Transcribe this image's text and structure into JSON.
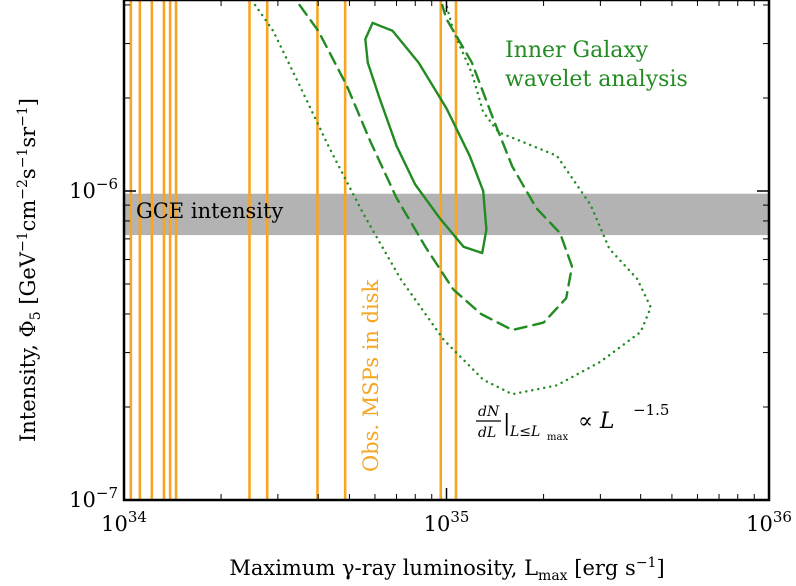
{
  "chart_data": {
    "type": "contour",
    "xscale": "log",
    "yscale": "log",
    "xlim": [
      1e+34,
      1e+36
    ],
    "ylim": [
      1e-07,
      4e-06
    ],
    "xlabel": "Maximum γ-ray luminosity, L",
    "xlabel_sub": "max",
    "xlabel_unit": " [erg s",
    "xlabel_unit_sup": "−1",
    "xlabel_end": "]",
    "ylabel": "Intensity, Φ",
    "ylabel_sub": "5",
    "ylabel_unit": " [GeV",
    "x_ticks": [
      {
        "value": 1e+34,
        "base": "10",
        "exp": "34"
      },
      {
        "value": 1e+35,
        "base": "10",
        "exp": "35"
      },
      {
        "value": 1e+36,
        "base": "10",
        "exp": "36"
      }
    ],
    "y_ticks": [
      {
        "value": 1e-07,
        "base": "10",
        "exp": "−7"
      },
      {
        "value": 1e-06,
        "base": "10",
        "exp": "−6"
      }
    ],
    "gce_band": {
      "label": "GCE intensity",
      "ymin": 7.2e-07,
      "ymax": 9.8e-07,
      "color": "#b3b3b3"
    },
    "msp_lines": {
      "label": "Obs. MSPs in disk",
      "color": "#f6a623",
      "x": [
        1.05e+34,
        1.12e+34,
        1.22e+34,
        1.33e+34,
        1.39e+34,
        1.45e+34,
        2.45e+34,
        2.78e+34,
        3.98e+34,
        4.85e+34,
        9.6e+34,
        1.07e+35
      ]
    },
    "annotation": {
      "line1": "Inner Galaxy",
      "line2": "wavelet analysis",
      "color": "#228b22"
    },
    "relation": {
      "num": "dN",
      "den": "dL",
      "cond": "L≤L",
      "cond_sub": "max",
      "prop": "∝ L",
      "exp": "−1.5"
    },
    "contours": [
      {
        "name": "solid",
        "style": "solid",
        "color": "#228b22",
        "points": [
          [
            5.9e+34,
            3.5e-06
          ],
          [
            5.6e+34,
            3.1e-06
          ],
          [
            5.7e+34,
            2.6e-06
          ],
          [
            6.2e+34,
            2e-06
          ],
          [
            7e+34,
            1.4e-06
          ],
          [
            8e+34,
            1.05e-06
          ],
          [
            9.5e+34,
            8.2e-07
          ],
          [
            1.13e+35,
            6.6e-07
          ],
          [
            1.29e+35,
            6.3e-07
          ],
          [
            1.33e+35,
            7.5e-07
          ],
          [
            1.3e+35,
            1e-06
          ],
          [
            1.18e+35,
            1.3e-06
          ],
          [
            1e+35,
            1.85e-06
          ],
          [
            8.2e+34,
            2.6e-06
          ],
          [
            6.8e+34,
            3.3e-06
          ],
          [
            5.9e+34,
            3.5e-06
          ]
        ]
      },
      {
        "name": "dashed",
        "style": "dashed",
        "color": "#228b22",
        "points": [
          [
            3.5e+34,
            4e-06
          ],
          [
            4e+34,
            3.3e-06
          ],
          [
            4.9e+34,
            2.2e-06
          ],
          [
            5.8e+34,
            1.45e-06
          ],
          [
            7e+34,
            9.5e-07
          ],
          [
            8.6e+34,
            6.6e-07
          ],
          [
            1.05e+35,
            4.8e-07
          ],
          [
            1.28e+35,
            4e-07
          ],
          [
            1.6e+35,
            3.55e-07
          ],
          [
            2e+35,
            3.75e-07
          ],
          [
            2.35e+35,
            4.5e-07
          ],
          [
            2.45e+35,
            5.7e-07
          ],
          [
            2.25e+35,
            7.3e-07
          ],
          [
            1.9e+35,
            8.8e-07
          ],
          [
            1.6e+35,
            1.2e-06
          ],
          [
            1.4e+35,
            1.7e-06
          ],
          [
            1.2e+35,
            2.6e-06
          ],
          [
            1e+35,
            3.6e-06
          ],
          [
            9.7e+34,
            4e-06
          ]
        ]
      },
      {
        "name": "dotted",
        "style": "dotted",
        "color": "#228b22",
        "points": [
          [
            2.55e+34,
            4e-06
          ],
          [
            2.9e+34,
            3.3e-06
          ],
          [
            3.5e+34,
            2.2e-06
          ],
          [
            4.3e+34,
            1.4e-06
          ],
          [
            5.5e+34,
            8.5e-07
          ],
          [
            7.2e+34,
            5.2e-07
          ],
          [
            9.8e+34,
            3.3e-07
          ],
          [
            1.3e+35,
            2.45e-07
          ],
          [
            1.6e+35,
            2.2e-07
          ],
          [
            2.2e+35,
            2.35e-07
          ],
          [
            3e+35,
            2.8e-07
          ],
          [
            4e+35,
            3.5e-07
          ],
          [
            4.3e+35,
            4.2e-07
          ],
          [
            3.9e+35,
            5.2e-07
          ],
          [
            3.2e+35,
            6.5e-07
          ],
          [
            2.8e+35,
            9e-07
          ],
          [
            2.2e+35,
            1.3e-06
          ],
          [
            1.7e+35,
            1.45e-06
          ],
          [
            1.45e+35,
            1.55e-06
          ],
          [
            1.3e+35,
            1.8e-06
          ],
          [
            1.2e+35,
            2.4e-06
          ],
          [
            1.05e+35,
            3.3e-06
          ],
          [
            1e+35,
            4e-06
          ]
        ]
      }
    ]
  }
}
